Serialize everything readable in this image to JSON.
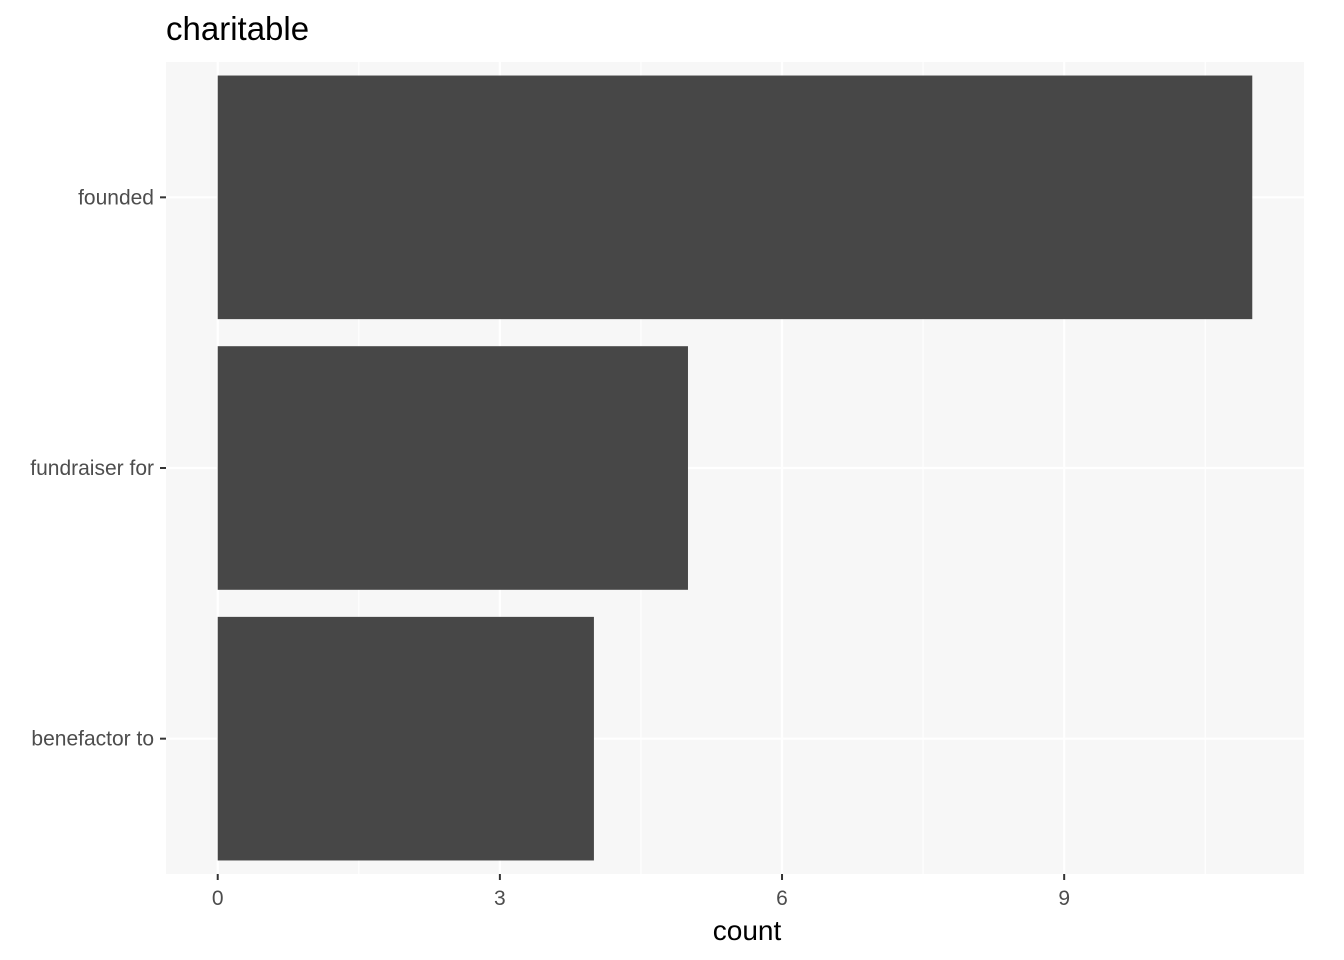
{
  "chart_data": {
    "type": "bar",
    "orientation": "horizontal",
    "title": "charitable",
    "xlabel": "count",
    "ylabel": "",
    "categories": [
      "founded",
      "fundraiser for",
      "benefactor to"
    ],
    "values": [
      11,
      5,
      4
    ],
    "x_ticks": [
      0,
      3,
      6,
      9
    ],
    "xlim": [
      -0.55,
      11.55
    ],
    "grid": true,
    "legend": "none",
    "colors": {
      "bar": "#474747",
      "panel": "#f7f7f7",
      "grid": "#ffffff"
    }
  }
}
